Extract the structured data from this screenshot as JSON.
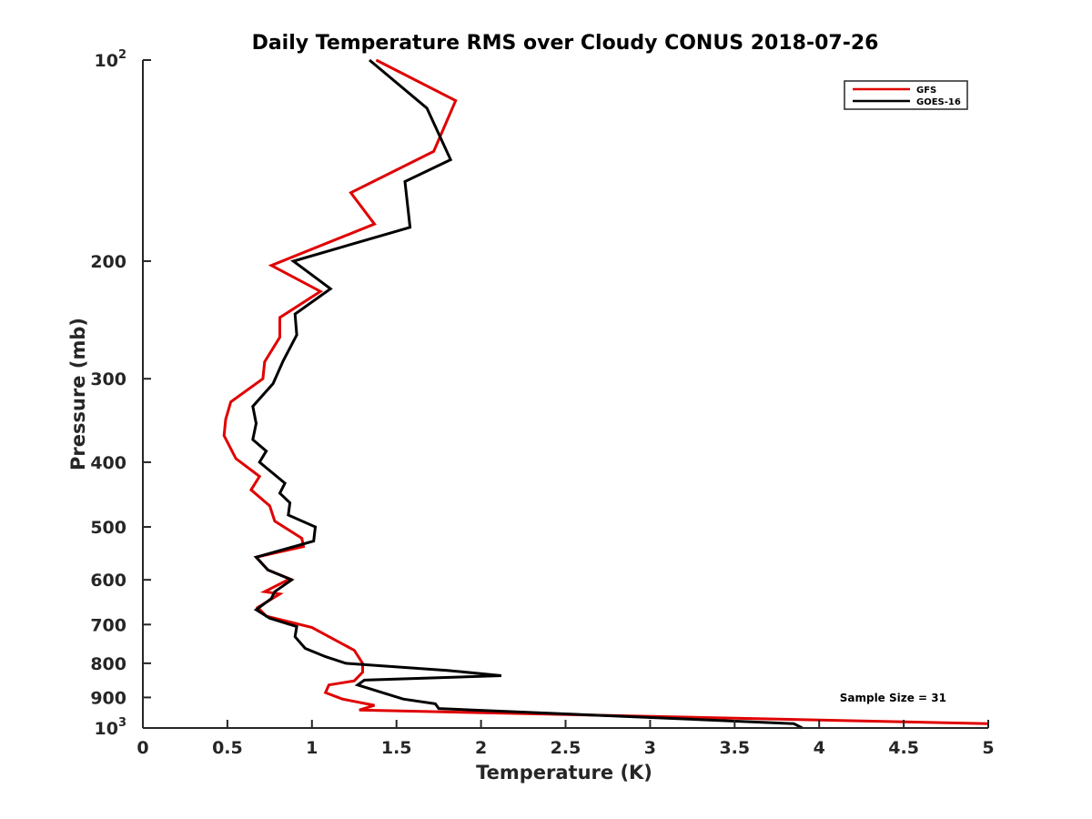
{
  "chart_data": {
    "type": "line",
    "title": "Daily Temperature RMS over Cloudy CONUS 2018-07-26",
    "xlabel": "Temperature (K)",
    "ylabel": "Pressure (mb)",
    "xlim": [
      0,
      5
    ],
    "ylim": [
      100,
      1000
    ],
    "y_scale": "log",
    "y_reversed": true,
    "x_ticks": [
      "0",
      "0.5",
      "1",
      "1.5",
      "2",
      "2.5",
      "3",
      "3.5",
      "4",
      "4.5",
      "5"
    ],
    "y_ticks": [
      {
        "value": 100,
        "base": "10",
        "exp": "2"
      },
      {
        "value": 200,
        "label": "200"
      },
      {
        "value": 300,
        "label": "300"
      },
      {
        "value": 400,
        "label": "400"
      },
      {
        "value": 500,
        "label": "500"
      },
      {
        "value": 600,
        "label": "600"
      },
      {
        "value": 700,
        "label": "700"
      },
      {
        "value": 800,
        "label": "800"
      },
      {
        "value": 900,
        "label": "900"
      },
      {
        "value": 1000,
        "base": "10",
        "exp": "3"
      }
    ],
    "grid": false,
    "legend_position": "top-right",
    "annotation": "Sample Size = 31",
    "series": [
      {
        "name": "GFS",
        "color": "#e00000",
        "points": [
          [
            1.38,
            100
          ],
          [
            1.85,
            115
          ],
          [
            1.72,
            137
          ],
          [
            1.23,
            158
          ],
          [
            1.37,
            176
          ],
          [
            0.76,
            203
          ],
          [
            1.05,
            222
          ],
          [
            0.81,
            243
          ],
          [
            0.81,
            260
          ],
          [
            0.72,
            283
          ],
          [
            0.71,
            300
          ],
          [
            0.52,
            325
          ],
          [
            0.49,
            345
          ],
          [
            0.48,
            365
          ],
          [
            0.55,
            395
          ],
          [
            0.69,
            420
          ],
          [
            0.64,
            440
          ],
          [
            0.75,
            465
          ],
          [
            0.78,
            490
          ],
          [
            0.94,
            520
          ],
          [
            0.95,
            535
          ],
          [
            0.67,
            555
          ],
          [
            0.74,
            580
          ],
          [
            0.87,
            598
          ],
          [
            0.72,
            625
          ],
          [
            0.81,
            630
          ],
          [
            0.68,
            660
          ],
          [
            0.73,
            680
          ],
          [
            1.0,
            707
          ],
          [
            1.25,
            765
          ],
          [
            1.3,
            800
          ],
          [
            1.3,
            825
          ],
          [
            1.25,
            850
          ],
          [
            1.1,
            862
          ],
          [
            1.08,
            885
          ],
          [
            1.18,
            905
          ],
          [
            1.37,
            925
          ],
          [
            1.28,
            940
          ],
          [
            5.0,
            985
          ]
        ]
      },
      {
        "name": "GOES-16",
        "color": "#000000",
        "points": [
          [
            1.34,
            100
          ],
          [
            1.68,
            118
          ],
          [
            1.82,
            141
          ],
          [
            1.55,
            152
          ],
          [
            1.58,
            178
          ],
          [
            0.89,
            200
          ],
          [
            1.11,
            220
          ],
          [
            0.9,
            240
          ],
          [
            0.91,
            258
          ],
          [
            0.83,
            282
          ],
          [
            0.77,
            305
          ],
          [
            0.65,
            330
          ],
          [
            0.67,
            350
          ],
          [
            0.65,
            370
          ],
          [
            0.73,
            385
          ],
          [
            0.69,
            400
          ],
          [
            0.84,
            430
          ],
          [
            0.81,
            445
          ],
          [
            0.87,
            460
          ],
          [
            0.86,
            480
          ],
          [
            1.02,
            500
          ],
          [
            1.01,
            525
          ],
          [
            0.67,
            555
          ],
          [
            0.74,
            580
          ],
          [
            0.88,
            600
          ],
          [
            0.78,
            625
          ],
          [
            0.76,
            640
          ],
          [
            0.67,
            665
          ],
          [
            0.75,
            685
          ],
          [
            0.91,
            705
          ],
          [
            0.9,
            730
          ],
          [
            0.96,
            760
          ],
          [
            1.08,
            782
          ],
          [
            1.2,
            800
          ],
          [
            1.8,
            820
          ],
          [
            2.12,
            835
          ],
          [
            1.31,
            848
          ],
          [
            1.27,
            862
          ],
          [
            1.54,
            905
          ],
          [
            1.73,
            920
          ],
          [
            1.75,
            935
          ],
          [
            3.85,
            985
          ],
          [
            3.9,
            1000
          ]
        ]
      }
    ]
  }
}
